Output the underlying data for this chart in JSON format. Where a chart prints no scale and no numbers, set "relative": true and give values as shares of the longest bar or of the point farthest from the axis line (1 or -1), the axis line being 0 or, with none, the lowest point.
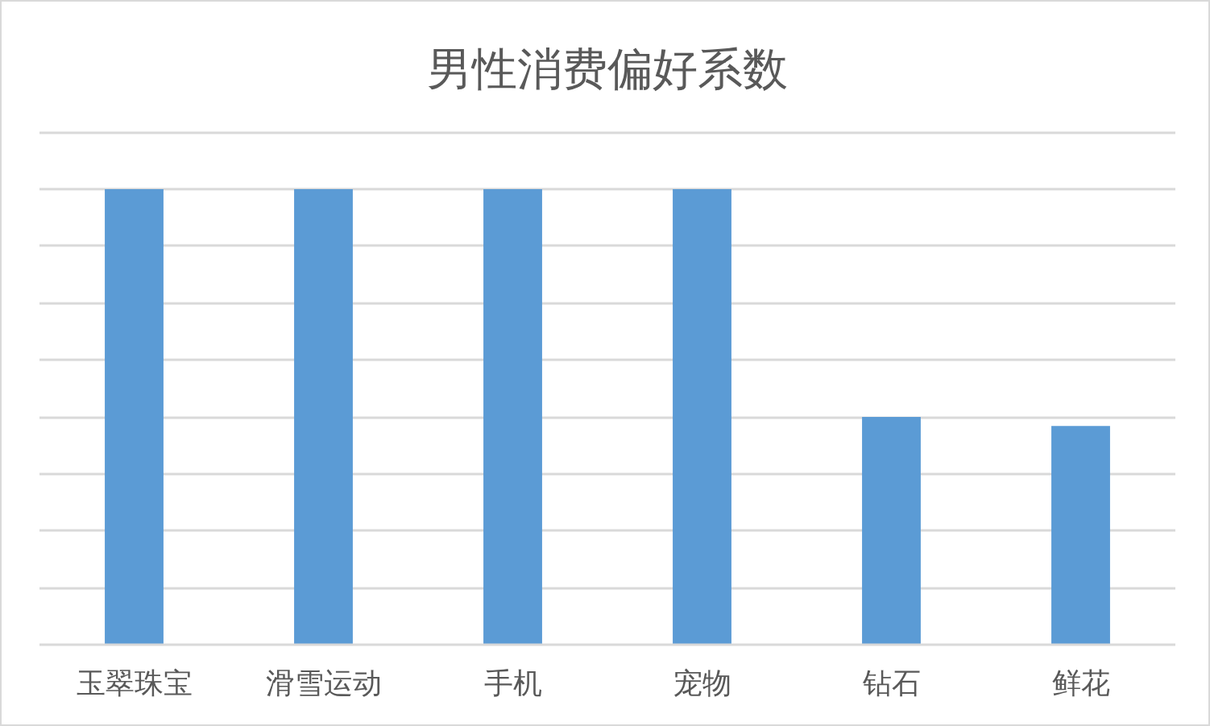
{
  "chart_data": {
    "type": "bar",
    "title": "男性消费偏好系数",
    "categories": [
      "玉翠珠宝",
      "滑雪运动",
      "手机",
      "宠物",
      "钻石",
      "鲜花"
    ],
    "values": [
      1,
      1,
      1,
      1,
      0.5,
      0.48
    ],
    "color": "#5b9bd5",
    "relative": true,
    "grid": "y"
  }
}
